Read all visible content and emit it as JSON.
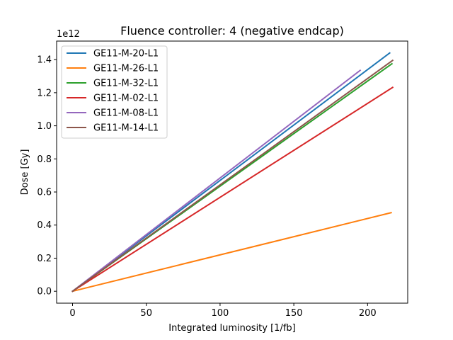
{
  "chart_data": {
    "type": "line",
    "title": "Fluence controller: 4 (negative endcap)",
    "xlabel": "Integrated luminosity [1/fb]",
    "ylabel": "Dose [Gy]",
    "y_offset_label": "1e12",
    "xlim": [
      -10.8,
      227.2
    ],
    "ylim": [
      -0.072,
      1.512
    ],
    "xticks": [
      0,
      50,
      100,
      150,
      200
    ],
    "xtick_labels": [
      "0",
      "50",
      "100",
      "150",
      "200"
    ],
    "yticks": [
      0.0,
      0.2,
      0.4,
      0.6,
      0.8,
      1.0,
      1.2,
      1.4
    ],
    "ytick_labels": [
      "0.0",
      "0.2",
      "0.4",
      "0.6",
      "0.8",
      "1.0",
      "1.2",
      "1.4"
    ],
    "grid": false,
    "legend_location": "upper left",
    "series": [
      {
        "name": "GE11-M-20-L1",
        "color": "#1f77b4",
        "x": [
          0,
          215
        ],
        "y": [
          0,
          1.44
        ]
      },
      {
        "name": "GE11-M-26-L1",
        "color": "#ff7f0e",
        "x": [
          0,
          216
        ],
        "y": [
          0,
          0.475
        ]
      },
      {
        "name": "GE11-M-32-L1",
        "color": "#2ca02c",
        "x": [
          0,
          216.5
        ],
        "y": [
          0,
          1.375
        ]
      },
      {
        "name": "GE11-M-02-L1",
        "color": "#d62728",
        "x": [
          0,
          217
        ],
        "y": [
          0,
          1.232
        ]
      },
      {
        "name": "GE11-M-08-L1",
        "color": "#9467bd",
        "x": [
          0,
          195
        ],
        "y": [
          0,
          1.335
        ]
      },
      {
        "name": "GE11-M-14-L1",
        "color": "#8c564b",
        "x": [
          0,
          217
        ],
        "y": [
          0,
          1.395
        ]
      }
    ]
  }
}
